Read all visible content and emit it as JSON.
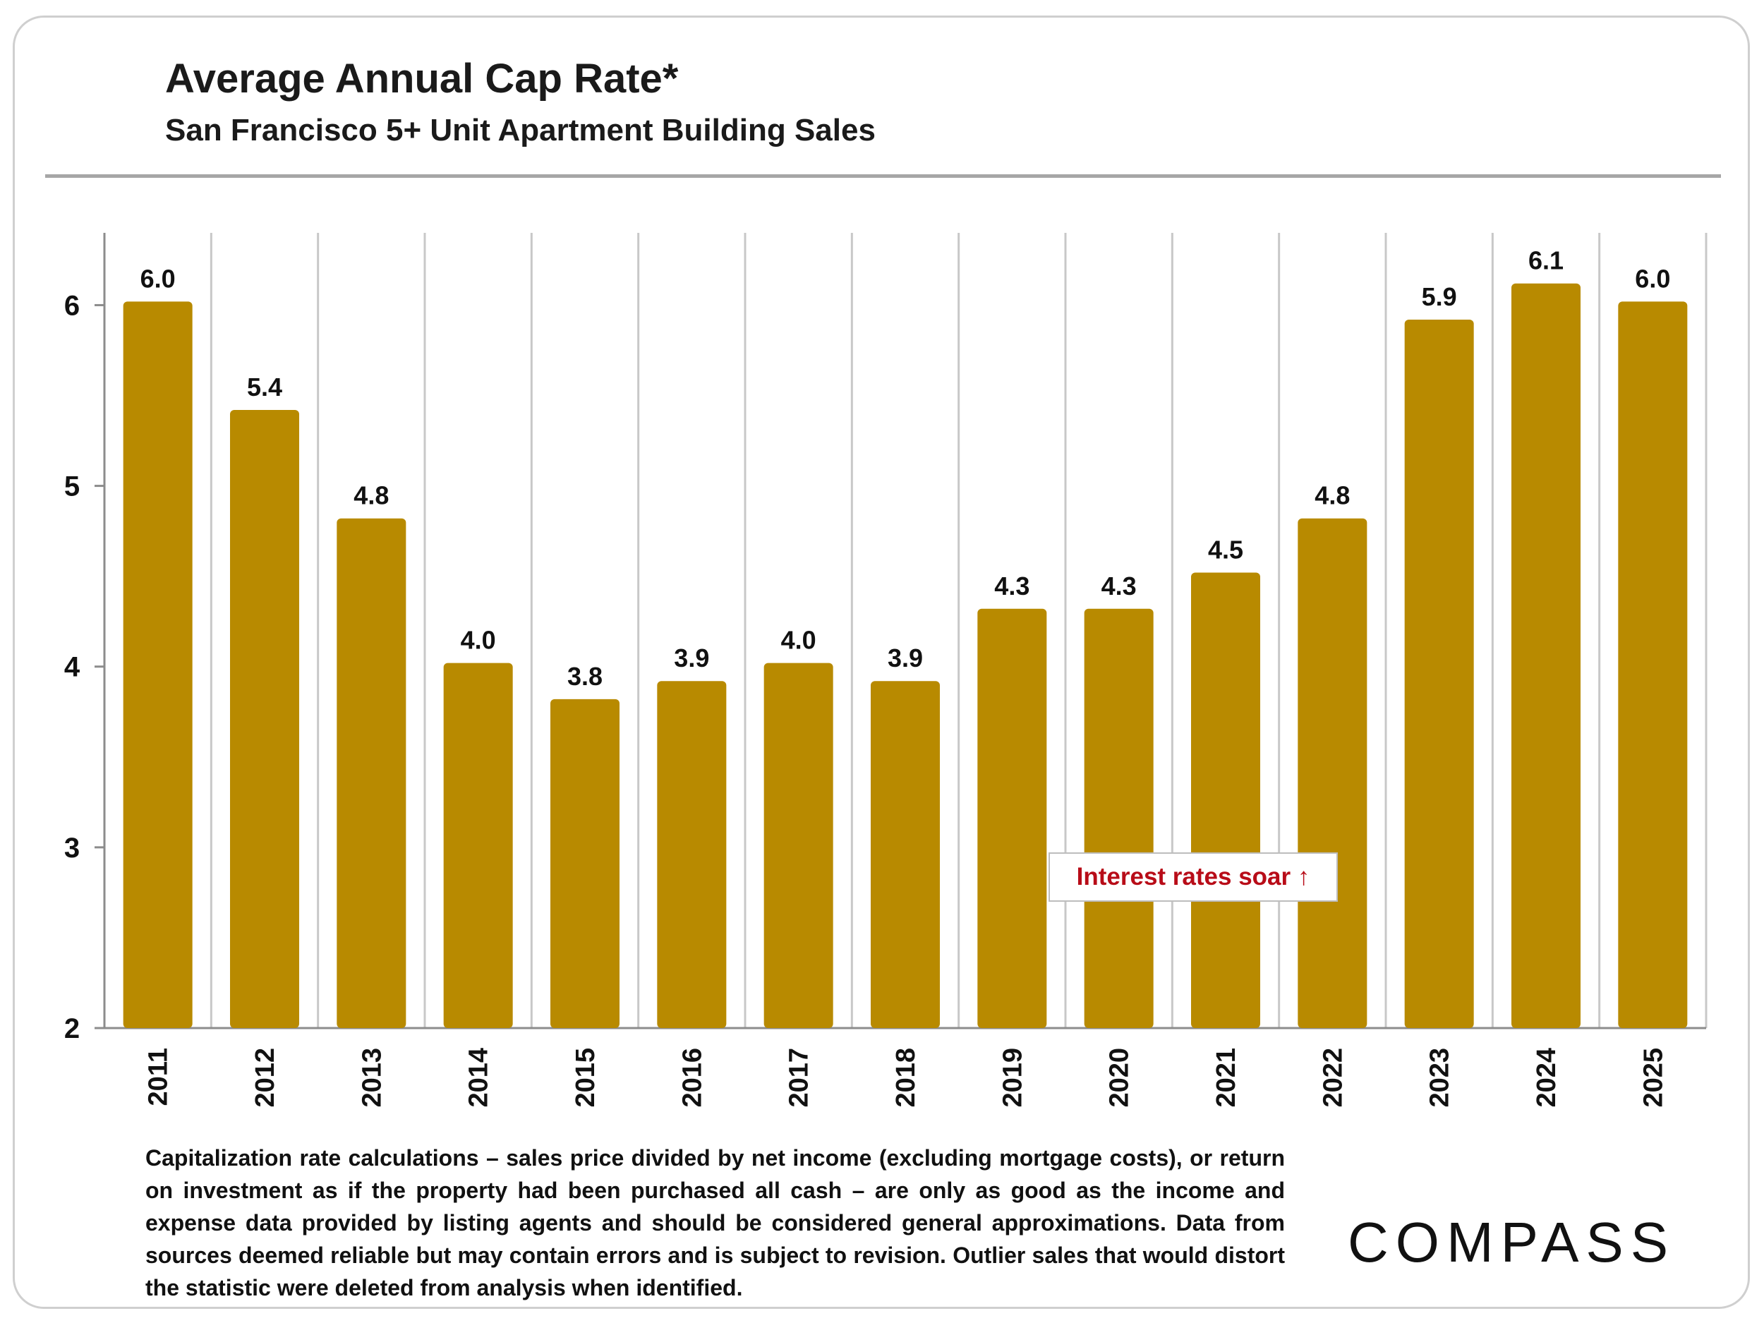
{
  "header": {
    "title": "Average Annual Cap Rate*",
    "subtitle": "San Francisco 5+ Unit Apartment Building Sales"
  },
  "annotation": {
    "text": "Interest rates soar ↑",
    "color": "#b80c18"
  },
  "footnote": "Capitalization rate calculations – sales price divided by net income (excluding mortgage costs), or return on investment as if the property had been purchased all cash – are only as good as the income and expense data provided by listing agents and should be considered general approximations. Data from sources deemed reliable but may contain errors and is subject to revision. Outlier sales that would distort the statistic were deleted from analysis when identified.",
  "logo": {
    "text": "COMPASS"
  },
  "colors": {
    "bar": "#b88a00",
    "grid": "#c8c8c8",
    "axis": "#8c8c8c"
  },
  "chart_data": {
    "type": "bar",
    "title": "Average Annual Cap Rate*",
    "subtitle": "San Francisco 5+ Unit Apartment Building Sales",
    "categories": [
      "2011",
      "2012",
      "2013",
      "2014",
      "2015",
      "2016",
      "2017",
      "2018",
      "2019",
      "2020",
      "2021",
      "2022",
      "2023",
      "2024",
      "2025"
    ],
    "values": [
      6.02,
      5.42,
      4.82,
      4.02,
      3.82,
      3.92,
      4.02,
      3.92,
      4.32,
      4.32,
      4.52,
      4.82,
      5.92,
      6.12,
      6.02
    ],
    "data_labels": [
      "6.0",
      "5.4",
      "4.8",
      "4.0",
      "3.8",
      "3.9",
      "4.0",
      "3.9",
      "4.3",
      "4.3",
      "4.5",
      "4.8",
      "5.9",
      "6.1",
      "6.0"
    ],
    "ylim": [
      2,
      6.4
    ],
    "yticks": [
      2,
      3,
      4,
      5,
      6
    ],
    "xlabel": "",
    "ylabel": "",
    "grid": "vertical",
    "legend": "none"
  }
}
